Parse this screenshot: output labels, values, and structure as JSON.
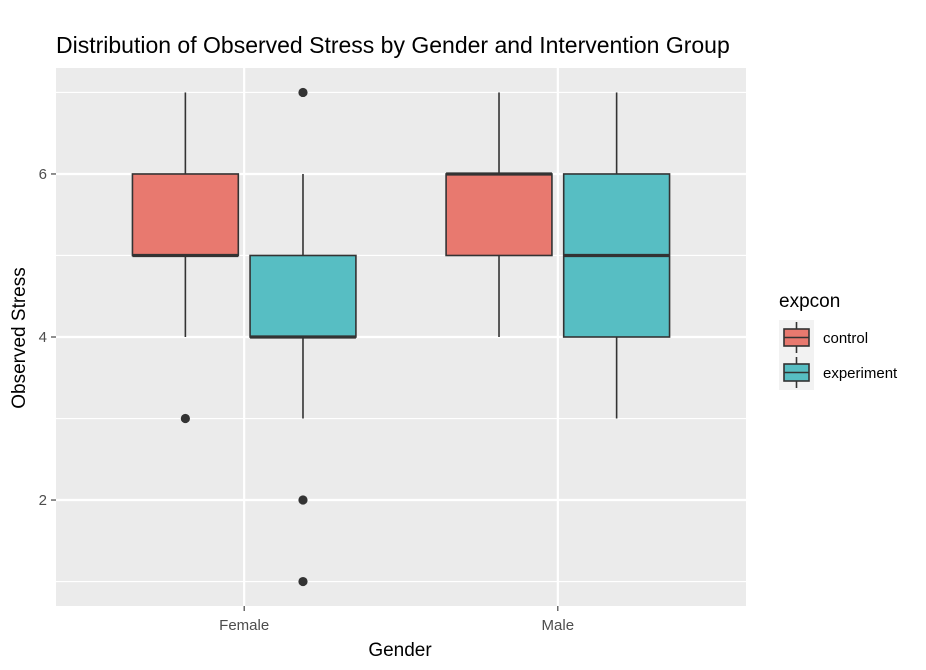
{
  "chart_data": {
    "type": "boxplot",
    "title": "Distribution of Observed Stress by Gender and Intervention Group",
    "xlabel": "Gender",
    "ylabel": "Observed Stress",
    "categories": [
      "Female",
      "Male"
    ],
    "ylim": [
      0.7,
      7.3
    ],
    "yticks": [
      2,
      4,
      6
    ],
    "grid": true,
    "legend": {
      "title": "expcon",
      "position": "right"
    },
    "series": [
      {
        "name": "control",
        "color": "#E8796F",
        "boxes": [
          {
            "category": "Female",
            "min": 4,
            "q1": 5,
            "median": 5,
            "q3": 6,
            "max": 7,
            "outliers": [
              3
            ]
          },
          {
            "category": "Male",
            "min": 4,
            "q1": 5,
            "median": 6,
            "q3": 6,
            "max": 7,
            "outliers": []
          }
        ]
      },
      {
        "name": "experiment",
        "color": "#57BEC3",
        "boxes": [
          {
            "category": "Female",
            "min": 3,
            "q1": 4,
            "median": 4,
            "q3": 5,
            "max": 6,
            "outliers": [
              7,
              2,
              1
            ]
          },
          {
            "category": "Male",
            "min": 3,
            "q1": 4,
            "median": 5,
            "q3": 6,
            "max": 7,
            "outliers": []
          }
        ]
      }
    ]
  }
}
